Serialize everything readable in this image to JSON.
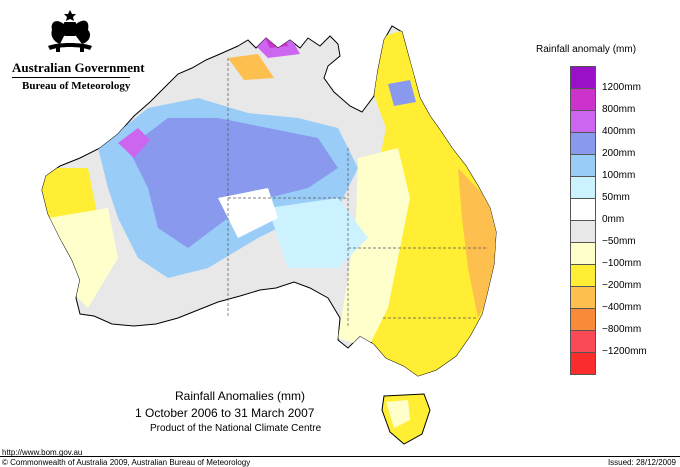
{
  "header": {
    "government": "Australian Government",
    "bureau": "Bureau of Meteorology"
  },
  "legend": {
    "title": "Rainfall anomaly (mm)",
    "items": [
      {
        "label": "1200mm",
        "color": "#9a10c8"
      },
      {
        "label": "800mm",
        "color": "#cc33cc"
      },
      {
        "label": "400mm",
        "color": "#cc66f0"
      },
      {
        "label": "200mm",
        "color": "#8899ee"
      },
      {
        "label": "100mm",
        "color": "#99ccf7"
      },
      {
        "label": "50mm",
        "color": "#ccf2ff"
      },
      {
        "label": "0mm",
        "color": "#ffffff"
      },
      {
        "label": "−50mm",
        "color": "#e8e8e8"
      },
      {
        "label": "−100mm",
        "color": "#ffffcc"
      },
      {
        "label": "−200mm",
        "color": "#ffee33"
      },
      {
        "label": "−400mm",
        "color": "#fdbf4d"
      },
      {
        "label": "−800mm",
        "color": "#f98a3a"
      },
      {
        "label": "−1200mm",
        "color": "#f94a55"
      },
      {
        "label": "",
        "color": "#fb2c2c"
      }
    ]
  },
  "caption": {
    "title": "Rainfall Anomalies (mm)",
    "period": "1 October 2006 to 31 March 2007",
    "product": "Product of the National Climate Centre"
  },
  "footer": {
    "url": "http://www.bom.gov.au",
    "copyright": "© Commonwealth of Australia 2009, Australian Bureau of Meteorology",
    "issued": "Issued: 28/12/2009"
  }
}
